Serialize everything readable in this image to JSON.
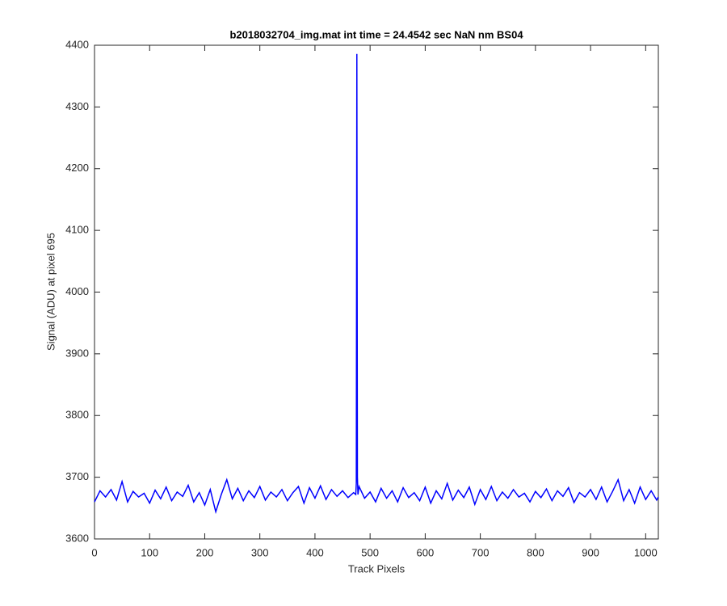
{
  "chart_data": {
    "type": "line",
    "title": "b2018032704_img.mat int time = 24.4542 sec  NaN nm BS04",
    "x_label": "Track Pixels",
    "y_label": "Signal (ADU) at pixel 695",
    "color": "#0000ff",
    "x": [
      0,
      10,
      20,
      30,
      40,
      50,
      60,
      70,
      80,
      90,
      100,
      110,
      120,
      130,
      140,
      150,
      160,
      170,
      180,
      190,
      200,
      210,
      220,
      230,
      240,
      250,
      260,
      270,
      280,
      290,
      300,
      310,
      320,
      330,
      340,
      350,
      360,
      370,
      380,
      390,
      400,
      410,
      420,
      430,
      440,
      450,
      460,
      470,
      474,
      475,
      476,
      477,
      478,
      480,
      490,
      500,
      510,
      520,
      530,
      540,
      550,
      560,
      570,
      580,
      590,
      600,
      610,
      620,
      630,
      640,
      650,
      660,
      670,
      680,
      690,
      700,
      710,
      720,
      730,
      740,
      750,
      760,
      770,
      780,
      790,
      800,
      810,
      820,
      830,
      840,
      850,
      860,
      870,
      880,
      890,
      900,
      910,
      920,
      930,
      940,
      950,
      960,
      970,
      980,
      990,
      1000,
      1010,
      1020,
      1023
    ],
    "values": [
      3660,
      3678,
      3668,
      3680,
      3663,
      3693,
      3660,
      3677,
      3668,
      3674,
      3658,
      3679,
      3665,
      3684,
      3662,
      3676,
      3669,
      3687,
      3660,
      3675,
      3655,
      3680,
      3644,
      3672,
      3696,
      3665,
      3682,
      3662,
      3678,
      3667,
      3685,
      3663,
      3676,
      3668,
      3680,
      3662,
      3675,
      3685,
      3658,
      3683,
      3666,
      3686,
      3664,
      3680,
      3669,
      3678,
      3667,
      3675,
      3672,
      3690,
      4386,
      3700,
      3672,
      3685,
      3666,
      3676,
      3660,
      3682,
      3666,
      3678,
      3660,
      3683,
      3667,
      3675,
      3662,
      3684,
      3658,
      3678,
      3665,
      3690,
      3663,
      3679,
      3667,
      3684,
      3656,
      3680,
      3664,
      3685,
      3662,
      3676,
      3666,
      3680,
      3668,
      3674,
      3660,
      3677,
      3667,
      3681,
      3662,
      3678,
      3669,
      3683,
      3659,
      3675,
      3668,
      3680,
      3664,
      3684,
      3660,
      3677,
      3696,
      3662,
      3680,
      3658,
      3684,
      3664,
      3678,
      3663,
      3668
    ],
    "xlim": [
      0,
      1023
    ],
    "xticks": [
      0,
      100,
      200,
      300,
      400,
      500,
      600,
      700,
      800,
      900,
      1000
    ],
    "ylim": [
      3600,
      4400
    ],
    "yticks": [
      3600,
      3700,
      3800,
      3900,
      4000,
      4100,
      4200,
      4300,
      4400
    ]
  }
}
